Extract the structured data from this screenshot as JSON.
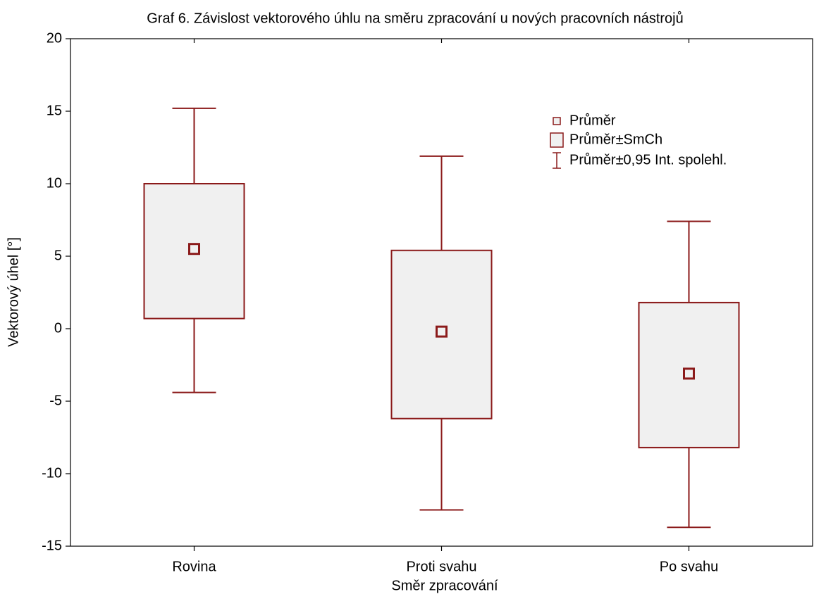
{
  "chart_data": {
    "type": "box",
    "title": "Graf 6. Závislost vektorového úhlu na směru zpracování u nových pracovních nástrojů",
    "x_label": "Směr zpracování",
    "y_label": "Vektorový úhel [°]",
    "categories": [
      "Rovina",
      "Proti svahu",
      "Po svahu"
    ],
    "values": [
      5.5,
      -0.2,
      -3.1
    ],
    "box_low": [
      0.7,
      -6.2,
      -8.2
    ],
    "box_high": [
      10.0,
      5.4,
      1.8
    ],
    "whisker_low": [
      -4.4,
      -12.5,
      -13.7
    ],
    "whisker_high": [
      15.2,
      11.9,
      7.4
    ],
    "legend": [
      "Průměr",
      "Průměr±SmCh",
      "Průměr±0,95 Int. spolehl."
    ],
    "color": "#8b1a1a",
    "box_fill": "#f0f0f0",
    "ylim": [
      -15,
      20
    ],
    "yticks": [
      -15,
      -10,
      -5,
      0,
      5,
      10,
      15,
      20
    ]
  }
}
